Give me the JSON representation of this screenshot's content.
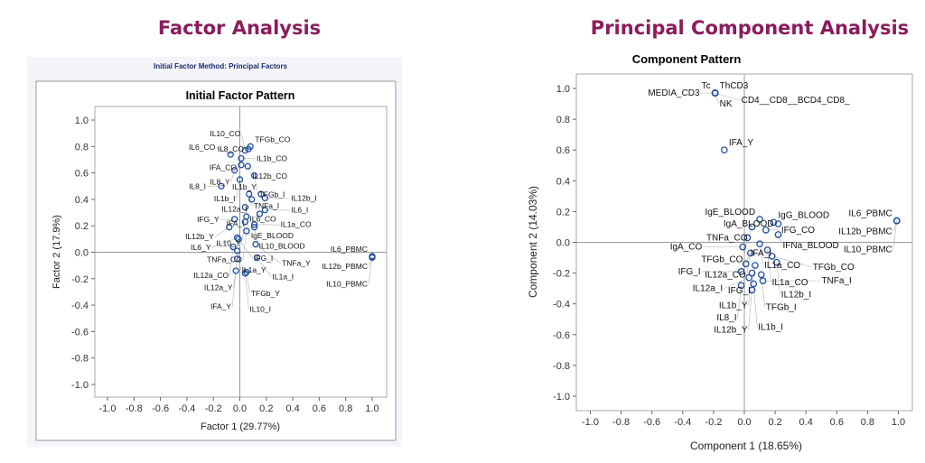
{
  "headings": {
    "left": "Factor Analysis",
    "right": "Principal Component Analysis"
  },
  "colors": {
    "heading": "#8a1c5c",
    "point": "#1f4e9c",
    "panel": "#f3f5fa"
  },
  "chart_data": [
    {
      "type": "scatter",
      "subtitle": "Initial Factor Method: Principal Factors",
      "title": "Initial Factor Pattern",
      "xlabel": "Factor 1 (29.77%)",
      "ylabel": "Factor 2 (17.9%)",
      "xlim": [
        -1.1,
        1.1
      ],
      "ylim": [
        -1.1,
        1.1
      ],
      "ticks": [
        "-1.0",
        "-0.8",
        "-0.6",
        "-0.4",
        "-0.2",
        "0.0",
        "0.2",
        "0.4",
        "0.6",
        "0.8",
        "1.0"
      ],
      "grid": false,
      "points": [
        {
          "x": 0.08,
          "y": 0.8,
          "label": "TFGb_CO",
          "side": "above-right"
        },
        {
          "x": 0.065,
          "y": 0.78,
          "label": "IL8_CO",
          "side": "right"
        },
        {
          "x": 0.04,
          "y": 0.77,
          "label": "IL10_CO",
          "side": "above-left"
        },
        {
          "x": -0.07,
          "y": 0.74,
          "label": "IL6_CO",
          "side": "above-left"
        },
        {
          "x": 0.01,
          "y": 0.71,
          "label": "IL1b_CO",
          "side": "right"
        },
        {
          "x": 0.01,
          "y": 0.66,
          "label": "IFA_CO",
          "side": "above-left"
        },
        {
          "x": 0.06,
          "y": 0.65,
          "label": "IL12b_CO",
          "side": "right"
        },
        {
          "x": -0.04,
          "y": 0.62,
          "label": "IL8_Y",
          "side": "above-left"
        },
        {
          "x": 0.11,
          "y": 0.58,
          "label": "TFGb_I",
          "side": "right"
        },
        {
          "x": 0.0,
          "y": 0.55,
          "label": "IL1b_I",
          "side": "left"
        },
        {
          "x": -0.14,
          "y": 0.5,
          "label": "IL8_I",
          "side": "left"
        },
        {
          "x": 0.16,
          "y": 0.44,
          "label": "IL1b_Y",
          "side": "above"
        },
        {
          "x": 0.07,
          "y": 0.44,
          "label": "TNFa_I",
          "side": "above-left"
        },
        {
          "x": 0.09,
          "y": 0.4,
          "label": "IL12a_I",
          "side": "left"
        },
        {
          "x": 0.19,
          "y": 0.41,
          "label": "IL12b_I",
          "side": "right"
        },
        {
          "x": 0.04,
          "y": 0.34,
          "label": "IL6_CO",
          "side": "above"
        },
        {
          "x": 0.19,
          "y": 0.32,
          "label": "IL6_I",
          "side": "right"
        },
        {
          "x": 0.15,
          "y": 0.29,
          "label": "IFA_I",
          "side": "left"
        },
        {
          "x": 0.05,
          "y": 0.27,
          "label": "IgE_BLOOD",
          "side": "right"
        },
        {
          "x": -0.04,
          "y": 0.25,
          "label": "IFG_Y",
          "side": "left"
        },
        {
          "x": 0.11,
          "y": 0.21,
          "label": "IL1a_CO",
          "side": "right"
        },
        {
          "x": 0.11,
          "y": 0.19,
          "label": "IL10_BLOOD",
          "side": "right"
        },
        {
          "x": 0.04,
          "y": 0.23,
          "label": "IL10_Y",
          "side": "above-left"
        },
        {
          "x": -0.08,
          "y": 0.19,
          "label": "IL12b_Y",
          "side": "left"
        },
        {
          "x": 0.05,
          "y": 0.16,
          "label": "TNFa_CO",
          "side": "left"
        },
        {
          "x": -0.02,
          "y": 0.11,
          "label": "IL6_Y",
          "side": "left"
        },
        {
          "x": -0.01,
          "y": 0.1,
          "label": "IFG_I",
          "side": "right"
        },
        {
          "x": -0.05,
          "y": 0.04,
          "label": "IL12a_CO",
          "side": "left"
        },
        {
          "x": -0.02,
          "y": 0.01,
          "label": "IL1a_Y",
          "side": "right"
        },
        {
          "x": 0.12,
          "y": 0.06,
          "label": "TNFa_Y",
          "side": "right"
        },
        {
          "x": 0.13,
          "y": -0.04,
          "label": "IL1a_I",
          "side": "right"
        },
        {
          "x": -0.02,
          "y": -0.05,
          "label": "IL12a_Y",
          "side": "left"
        },
        {
          "x": 0.05,
          "y": -0.15,
          "label": "TFGb_Y",
          "side": "above"
        },
        {
          "x": -0.03,
          "y": -0.14,
          "label": "IFA_Y",
          "side": "below-left"
        },
        {
          "x": 0.04,
          "y": -0.16,
          "label": "IL10_I",
          "side": "below-right"
        },
        {
          "x": 1.0,
          "y": -0.03,
          "label": "IL6_PBMC",
          "side": "above-left"
        },
        {
          "x": 1.0,
          "y": -0.035,
          "label": "IL12b_PBMC",
          "side": "left"
        },
        {
          "x": 1.0,
          "y": -0.04,
          "label": "IL10_PBMC",
          "side": "below-left"
        }
      ]
    },
    {
      "type": "scatter",
      "title": "Component Pattern",
      "xlabel": "Component 1 (18.65%)",
      "ylabel": "Component 2 (14.03%)",
      "xlim": [
        -1.1,
        1.1
      ],
      "ylim": [
        -1.1,
        1.1
      ],
      "ticks": [
        "-1.0",
        "-0.8",
        "-0.6",
        "-0.4",
        "-0.2",
        "0.0",
        "0.2",
        "0.4",
        "0.6",
        "0.8",
        "1.0"
      ],
      "grid": false,
      "points": [
        {
          "x": -0.19,
          "y": 0.97,
          "label": "Tc",
          "side": "above-left"
        },
        {
          "x": -0.19,
          "y": 0.97,
          "label": "ThCD3",
          "side": "above-right"
        },
        {
          "x": -0.19,
          "y": 0.97,
          "label": "NK",
          "side": "right"
        },
        {
          "x": -0.19,
          "y": 0.97,
          "label": "MEDIA_CD3",
          "side": "left"
        },
        {
          "x": -0.19,
          "y": 0.97,
          "label": "CD4__CD8__BCD4_CD8_",
          "side": "below"
        },
        {
          "x": -0.13,
          "y": 0.6,
          "label": "IFA_Y",
          "side": "above-right"
        },
        {
          "x": 0.99,
          "y": 0.14,
          "label": "IL6_PBMC",
          "side": "above-left"
        },
        {
          "x": 0.99,
          "y": 0.14,
          "label": "IL12b_PBMC",
          "side": "left"
        },
        {
          "x": 0.99,
          "y": 0.14,
          "label": "IL10_PBMC",
          "side": "below-left"
        },
        {
          "x": 0.19,
          "y": 0.13,
          "label": "IgG_BLOOD",
          "side": "above"
        },
        {
          "x": 0.1,
          "y": 0.15,
          "label": "IgE_BLOOD",
          "side": "above-left"
        },
        {
          "x": 0.22,
          "y": 0.12,
          "label": "IgA_BLOOD",
          "side": "right"
        },
        {
          "x": 0.05,
          "y": 0.1,
          "label": "TNFa_CO",
          "side": "left"
        },
        {
          "x": 0.14,
          "y": 0.08,
          "label": "IFG_CO",
          "side": "left"
        },
        {
          "x": 0.22,
          "y": 0.05,
          "label": "IFNa_BLOOD",
          "side": "right"
        },
        {
          "x": 0.02,
          "y": 0.03,
          "label": "TFGb_CO",
          "side": "left"
        },
        {
          "x": 0.1,
          "y": -0.01,
          "label": "IL1a_CO",
          "side": "right"
        },
        {
          "x": -0.01,
          "y": -0.03,
          "label": "IgA_CO",
          "side": "left"
        },
        {
          "x": 0.15,
          "y": -0.05,
          "label": "IL1a_CO",
          "side": "right"
        },
        {
          "x": 0.04,
          "y": -0.07,
          "label": "IL12a_CO",
          "side": "left"
        },
        {
          "x": 0.18,
          "y": -0.09,
          "label": "TFGb_CO",
          "side": "right"
        },
        {
          "x": 0.21,
          "y": -0.13,
          "label": "IL12b_I",
          "side": "right"
        },
        {
          "x": 0.01,
          "y": -0.14,
          "label": "IFA_I",
          "side": "left"
        },
        {
          "x": 0.07,
          "y": -0.15,
          "label": "IFG_I",
          "side": "above"
        },
        {
          "x": 0.11,
          "y": -0.21,
          "label": "TFGb_I",
          "side": "right"
        },
        {
          "x": -0.02,
          "y": -0.19,
          "label": "IFG_I",
          "side": "left"
        },
        {
          "x": 0.05,
          "y": -0.2,
          "label": "IL1b_Y",
          "side": "right"
        },
        {
          "x": 0.03,
          "y": -0.23,
          "label": "IL12a_I",
          "side": "left"
        },
        {
          "x": 0.12,
          "y": -0.25,
          "label": "TNFa_I",
          "side": "right"
        },
        {
          "x": -0.02,
          "y": -0.28,
          "label": "IL8_I",
          "side": "left"
        },
        {
          "x": 0.06,
          "y": -0.27,
          "label": "IL1b_I",
          "side": "right"
        },
        {
          "x": 0.05,
          "y": -0.31,
          "label": "IL12b_Y",
          "side": "below"
        }
      ]
    }
  ]
}
